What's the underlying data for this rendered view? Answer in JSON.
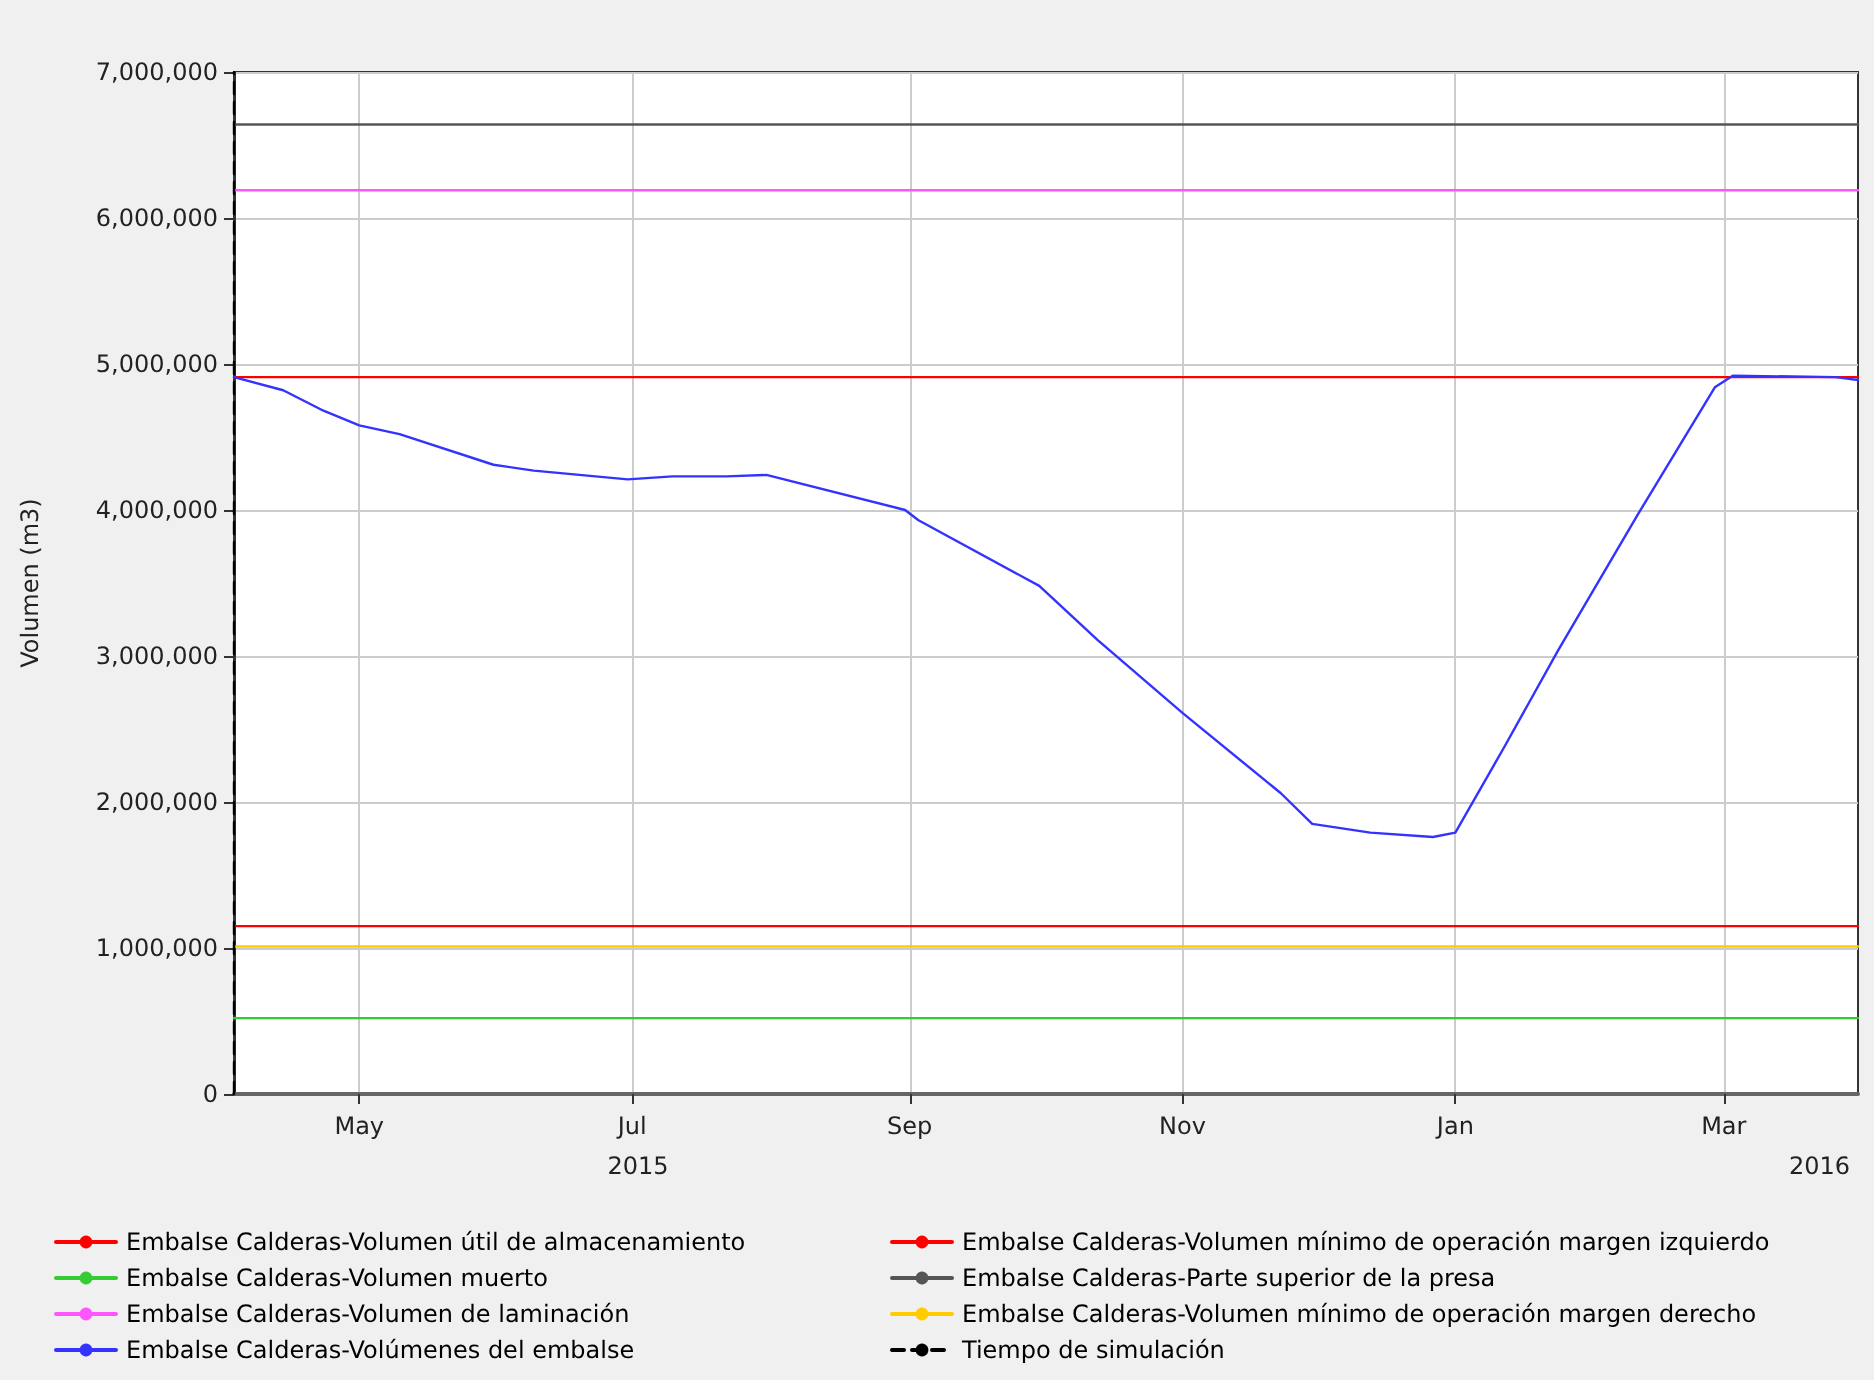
{
  "chart_data": {
    "type": "line",
    "ylabel": "Volumen (m3)",
    "xlim": [
      "2015-04-03",
      "2016-03-31"
    ],
    "xticks": [
      {
        "value": "2015-05-01",
        "label": "May"
      },
      {
        "value": "2015-07-01",
        "label": "Jul"
      },
      {
        "value": "2015-09-01",
        "label": "Sep"
      },
      {
        "value": "2015-11-01",
        "label": "Nov"
      },
      {
        "value": "2016-01-01",
        "label": "Jan"
      },
      {
        "value": "2016-03-01",
        "label": "Mar"
      }
    ],
    "ylim": [
      0,
      7000000
    ],
    "yticks": [
      0,
      {
        "value": 1000000,
        "label": "1,000,000"
      },
      {
        "value": 2000000,
        "label": "2,000,000"
      },
      {
        "value": 3000000,
        "label": "3,000,000"
      },
      {
        "value": 4000000,
        "label": "4,000,000"
      },
      {
        "value": 5000000,
        "label": "5,000,000"
      },
      {
        "value": 6000000,
        "label": "6,000,000"
      },
      {
        "value": 7000000,
        "label": "7,000,000"
      }
    ],
    "annotations": [
      "2015",
      "2016"
    ],
    "grid": true,
    "legend": "bottom",
    "line_style": "solid",
    "marker": "none",
    "series": [
      {
        "name": "Embalse Calderas-Volumen útil de almacenamiento",
        "color": "#ff0000",
        "x": [
          "2015-04-03",
          "2016-03-31"
        ],
        "values": [
          4910000,
          4910000
        ]
      },
      {
        "name": "Embalse Calderas-Volumen mínimo de operación margen izquierdo",
        "color": "#ff0000",
        "x": [
          "2015-04-03",
          "2016-03-31"
        ],
        "values": [
          1150000,
          1150000
        ]
      },
      {
        "name": "Embalse Calderas-Volumen muerto",
        "color": "#33cc33",
        "x": [
          "2015-04-03",
          "2016-03-31"
        ],
        "values": [
          520000,
          520000
        ]
      },
      {
        "name": "Embalse Calderas-Parte superior de la presa",
        "color": "#555555",
        "x": [
          "2015-04-03",
          "2016-03-31"
        ],
        "values": [
          6640000,
          6640000
        ]
      },
      {
        "name": "Embalse Calderas-Volumen de laminación",
        "color": "#ff55ff",
        "x": [
          "2015-04-03",
          "2016-03-31"
        ],
        "values": [
          6190000,
          6190000
        ]
      },
      {
        "name": "Embalse Calderas-Volumen mínimo de operación margen derecho",
        "color": "#ffcc00",
        "x": [
          "2015-04-03",
          "2016-03-31"
        ],
        "values": [
          1010000,
          1010000
        ]
      },
      {
        "name": "Embalse Calderas-Volúmenes del embalse",
        "color": "#3333ff",
        "x": [
          "2015-04-03",
          "2015-04-14",
          "2015-04-23",
          "2015-05-01",
          "2015-05-10",
          "2015-05-31",
          "2015-06-09",
          "2015-06-30",
          "2015-07-10",
          "2015-07-22",
          "2015-07-31",
          "2015-08-31",
          "2015-09-03",
          "2015-09-30",
          "2015-10-13",
          "2015-11-01",
          "2015-11-23",
          "2015-11-30",
          "2015-12-13",
          "2015-12-27",
          "2016-01-01",
          "2016-01-12",
          "2016-01-24",
          "2016-02-11",
          "2016-02-28",
          "2016-03-03",
          "2016-03-26",
          "2016-03-31"
        ],
        "values": [
          4910000,
          4820000,
          4680000,
          4580000,
          4520000,
          4310000,
          4270000,
          4210000,
          4230000,
          4230000,
          4240000,
          4000000,
          3930000,
          3480000,
          3110000,
          2610000,
          2060000,
          1850000,
          1790000,
          1760000,
          1790000,
          2380000,
          3040000,
          3980000,
          4840000,
          4920000,
          4910000,
          4890000
        ]
      },
      {
        "name": "Tiempo de simulación",
        "color": "#000000",
        "line_style": "dashed",
        "x": [
          "2015-04-03",
          "2015-04-03"
        ],
        "values": [
          0,
          7000000
        ]
      }
    ]
  }
}
